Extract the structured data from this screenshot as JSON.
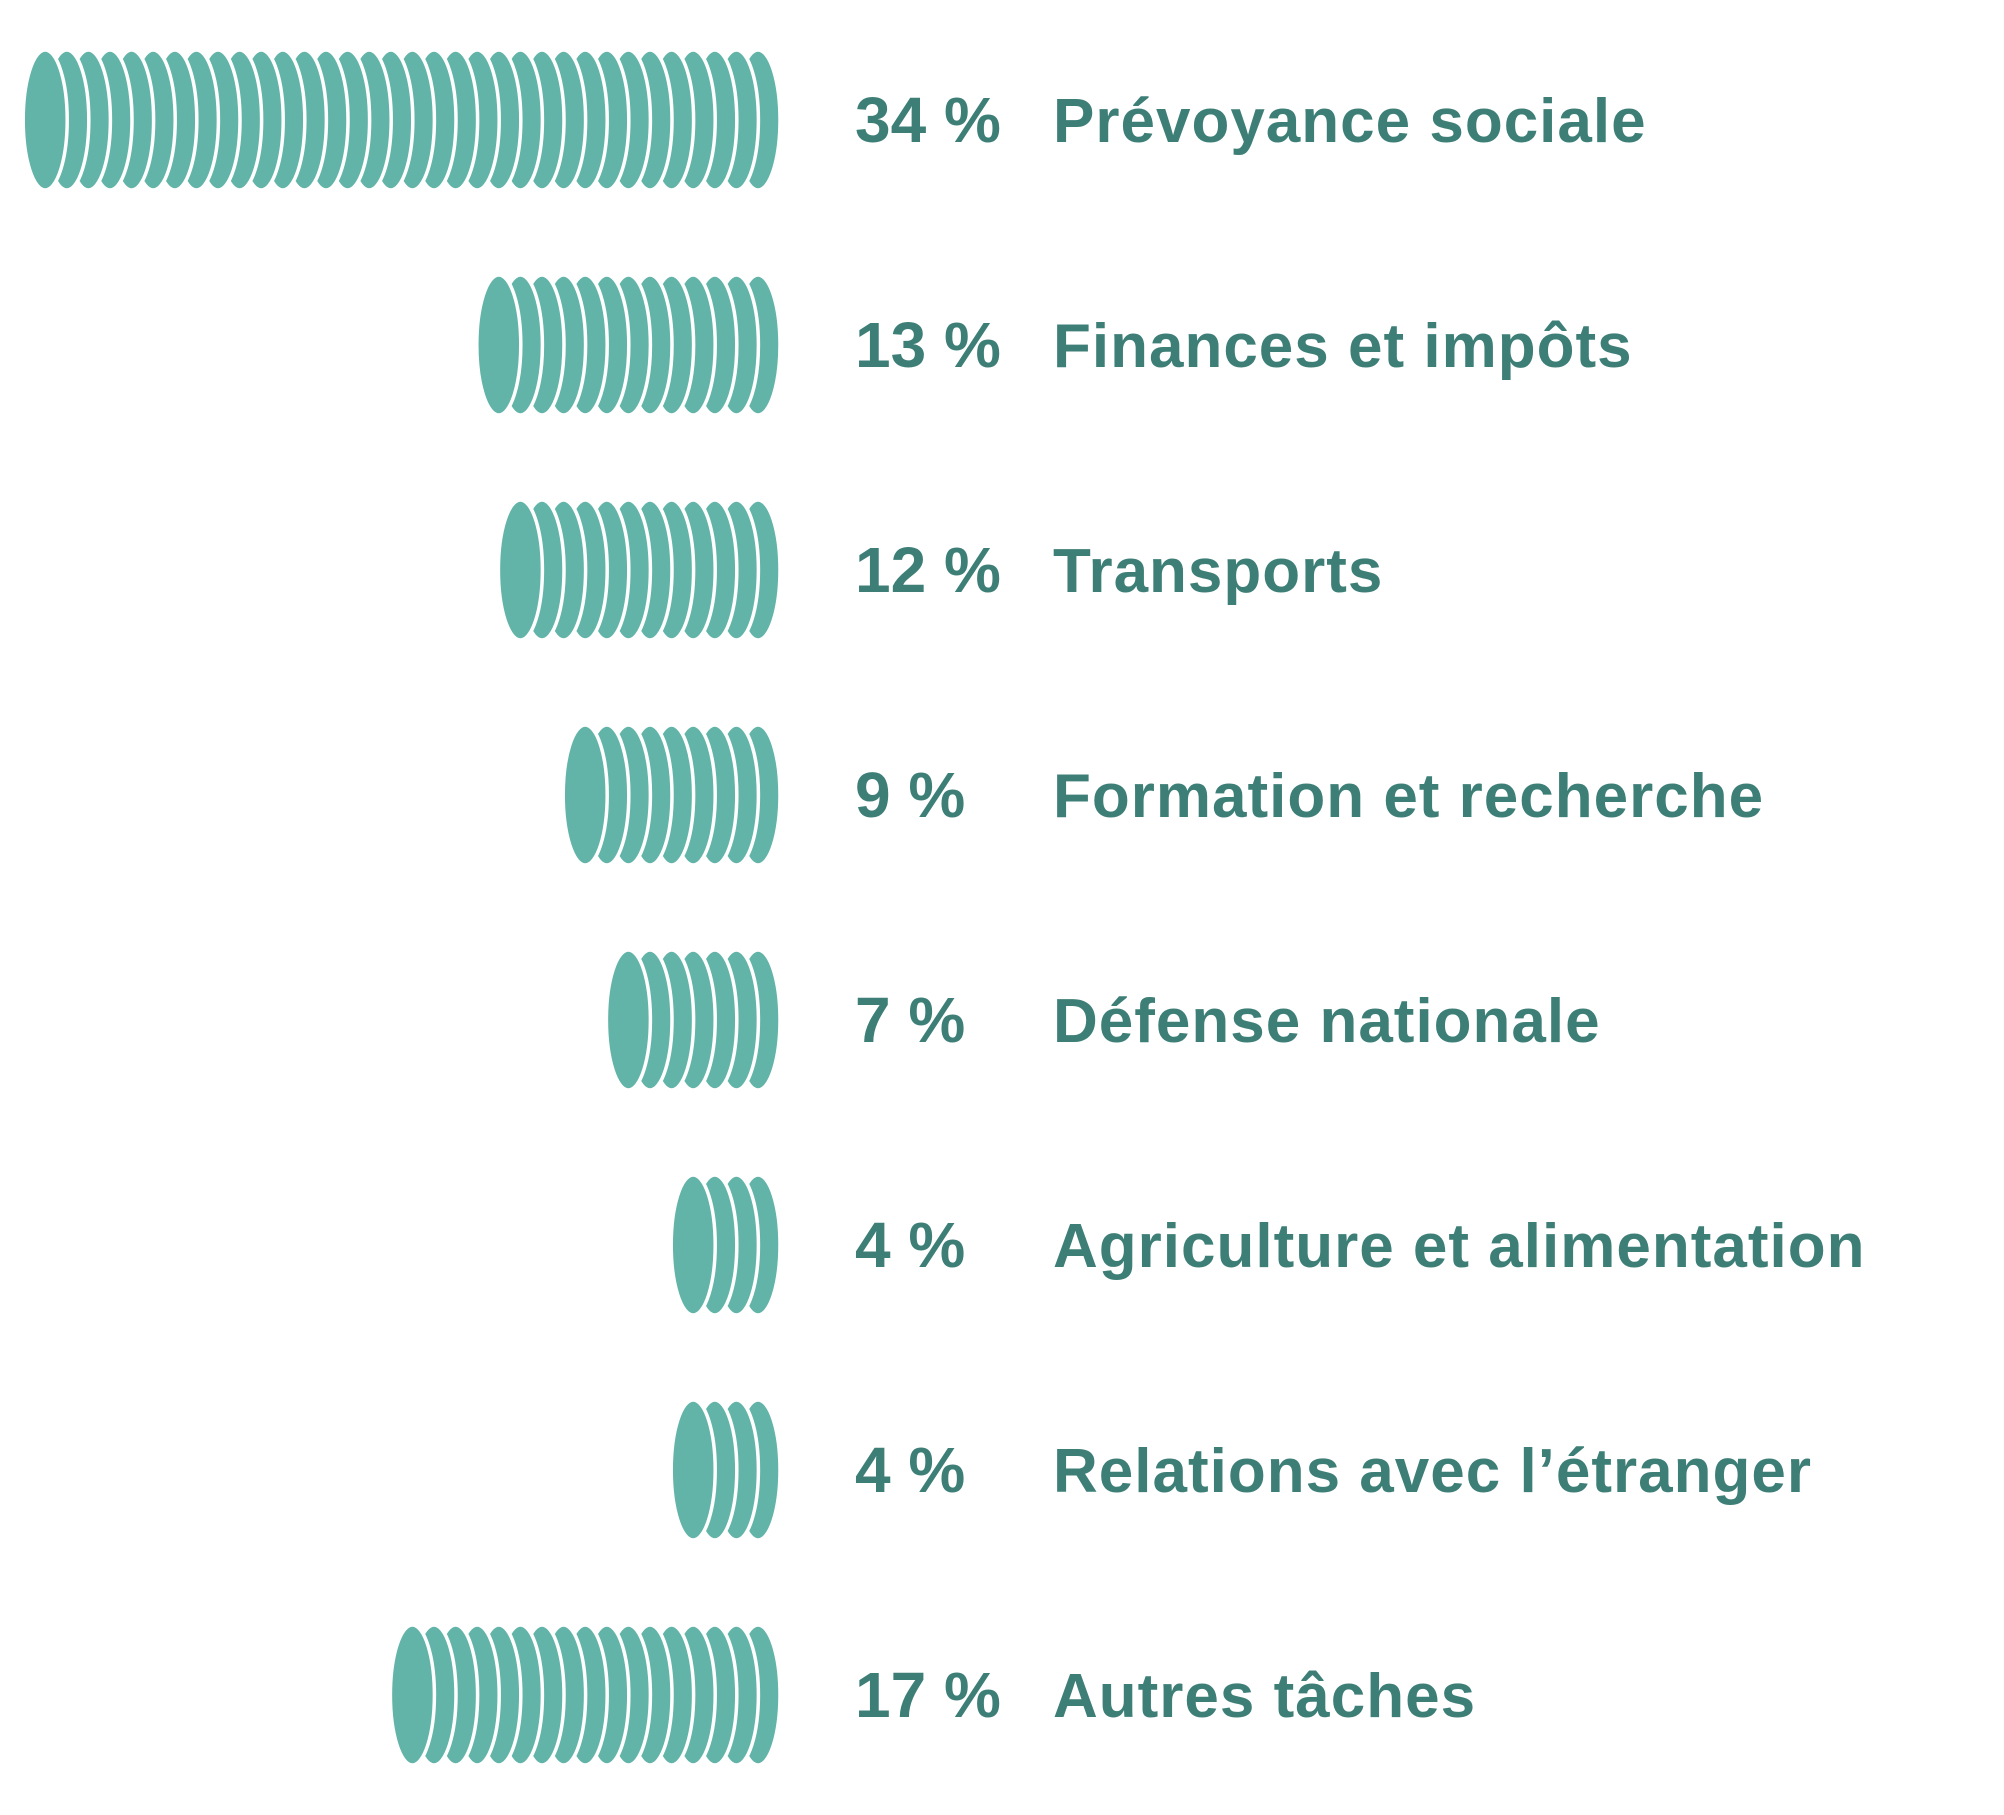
{
  "chart_data": {
    "type": "bar",
    "orientation": "horizontal",
    "categories": [
      "Prévoyance sociale",
      "Finances et impôts",
      "Transports",
      "Formation et recherche",
      "Défense nationale",
      "Agriculture et alimentation",
      "Relations avec l’étranger",
      "Autres tâches"
    ],
    "values": [
      34,
      13,
      12,
      9,
      7,
      4,
      4,
      17
    ],
    "value_labels": [
      "34 %",
      "13 %",
      "12 %",
      "9 %",
      "7 %",
      "4 %",
      "4 %",
      "17 %"
    ],
    "unit": "%",
    "xlim": [
      0,
      34
    ],
    "grid": false,
    "legend": "none",
    "bar_style": "stacked-coins",
    "bar_color": "#62b4a8",
    "text_color": "#3d7f77",
    "background_color": "#ffffff"
  }
}
